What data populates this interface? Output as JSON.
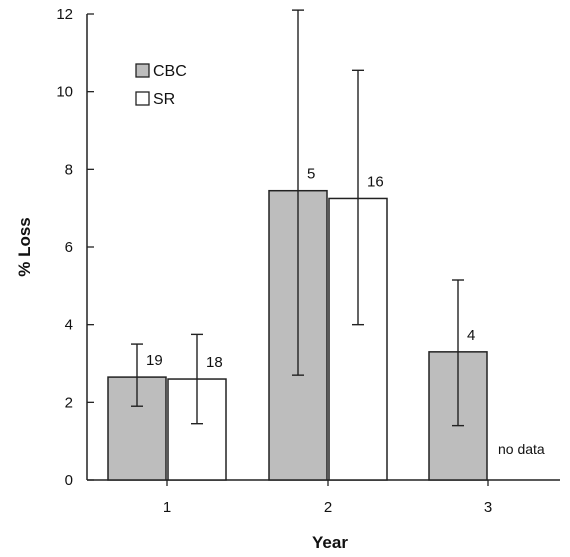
{
  "chart_data": {
    "type": "bar",
    "xlabel": "Year",
    "ylabel": "% Loss",
    "ylim": [
      0,
      12
    ],
    "yticks": [
      0,
      2,
      4,
      6,
      8,
      10,
      12
    ],
    "categories": [
      "1",
      "2",
      "3"
    ],
    "series": [
      {
        "name": "CBC",
        "fill": "#bdbdbd",
        "values": [
          2.65,
          7.45,
          3.3
        ],
        "err_low": [
          1.9,
          2.7,
          1.4
        ],
        "err_high": [
          3.5,
          12.1,
          5.15
        ],
        "n": [
          "19",
          "5",
          "4"
        ]
      },
      {
        "name": "SR",
        "fill": "#ffffff",
        "values": [
          2.6,
          7.25,
          null
        ],
        "err_low": [
          1.45,
          4.0,
          null
        ],
        "err_high": [
          3.75,
          10.55,
          null
        ],
        "n": [
          "18",
          "16",
          null
        ]
      }
    ],
    "annotations": [
      {
        "category": "3",
        "series": "SR",
        "text": "no data"
      }
    ],
    "legend_position": "top-left",
    "grid": false
  }
}
